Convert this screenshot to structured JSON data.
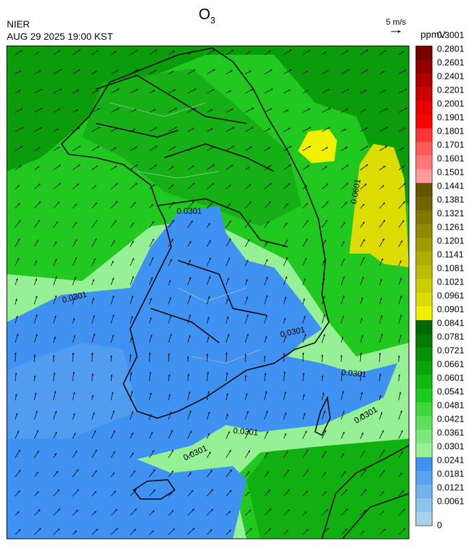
{
  "header": {
    "title": "O",
    "title_subscript": "3",
    "agency": "NIER",
    "datetime": "AUG 29 2025 19:00 KST",
    "wind_reference": "5 m/s"
  },
  "colorbar": {
    "unit": "ppmV",
    "levels": [
      0,
      0.0061,
      0.0121,
      0.0181,
      0.0241,
      0.0301,
      0.0361,
      0.0421,
      0.0481,
      0.0541,
      0.0601,
      0.0661,
      0.0721,
      0.0781,
      0.0841,
      0.0901,
      0.0961,
      0.1021,
      0.1081,
      0.1141,
      0.1201,
      0.1261,
      0.1321,
      0.1381,
      0.1441,
      0.1501,
      0.1601,
      0.1701,
      0.1801,
      0.1901,
      0.2001,
      0.2201,
      0.2401,
      0.2601,
      0.2801,
      0.3001
    ],
    "colors": [
      "#a6d2ea",
      "#8dc4ec",
      "#72b3ee",
      "#5aa3f0",
      "#3f92f2",
      "#96f096",
      "#7ae87a",
      "#5ee05e",
      "#3cd83c",
      "#1ccc1c",
      "#10b810",
      "#0aa40a",
      "#069006",
      "#047c04",
      "#026802",
      "#f0f000",
      "#dcdc00",
      "#cccc00",
      "#bcbc00",
      "#aeac00",
      "#a09c00",
      "#908a00",
      "#807800",
      "#706600",
      "#645600",
      "#ff9a9a",
      "#ff7878",
      "#ff5a5a",
      "#ff3434",
      "#ff0000",
      "#e80000",
      "#cc0000",
      "#b00000",
      "#940000",
      "#760000"
    ]
  },
  "map": {
    "contour_labels": [
      "0.0301",
      "0.0301",
      "0.0301",
      "0.0301",
      "0.0301",
      "0.0301",
      "0.0301",
      "0.0601"
    ]
  }
}
